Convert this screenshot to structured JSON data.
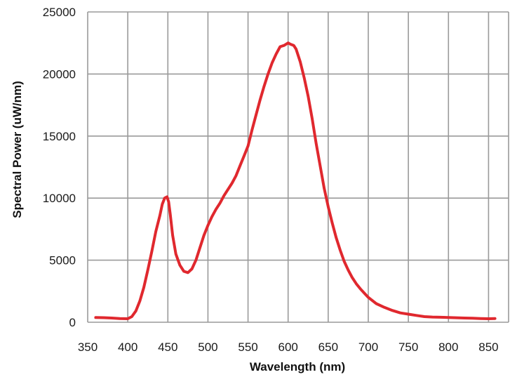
{
  "chart_data": {
    "type": "line",
    "title": "",
    "xlabel": "Wavelength (nm)",
    "ylabel": "Spectral Power (uW/nm)",
    "xlim": [
      350,
      875
    ],
    "ylim": [
      0,
      25000
    ],
    "x_ticks": [
      350,
      400,
      450,
      500,
      550,
      600,
      650,
      700,
      750,
      800,
      850
    ],
    "y_ticks": [
      0,
      5000,
      10000,
      15000,
      20000,
      25000
    ],
    "grid": true,
    "colors": {
      "series": "#e0282e",
      "grid": "#9a9a9a",
      "text": "#1a1a1a"
    },
    "series": [
      {
        "x": [
          360,
          370,
          380,
          390,
          400,
          405,
          410,
          415,
          420,
          425,
          430,
          435,
          440,
          443,
          446,
          449,
          451,
          453,
          456,
          460,
          465,
          470,
          475,
          480,
          485,
          490,
          495,
          500,
          505,
          510,
          515,
          520,
          525,
          530,
          535,
          540,
          545,
          550,
          555,
          560,
          565,
          570,
          575,
          580,
          585,
          590,
          595,
          600,
          603,
          607,
          610,
          615,
          620,
          625,
          630,
          635,
          640,
          645,
          650,
          655,
          660,
          665,
          670,
          675,
          680,
          685,
          690,
          695,
          700,
          710,
          720,
          730,
          740,
          750,
          760,
          770,
          780,
          790,
          800,
          810,
          820,
          830,
          840,
          850,
          858
        ],
        "y": [
          380,
          370,
          340,
          300,
          280,
          450,
          900,
          1700,
          2800,
          4200,
          5700,
          7300,
          8600,
          9500,
          10000,
          10100,
          9700,
          8700,
          7000,
          5500,
          4600,
          4100,
          4000,
          4300,
          5000,
          6000,
          7000,
          7800,
          8500,
          9100,
          9600,
          10200,
          10700,
          11200,
          11800,
          12600,
          13400,
          14200,
          15500,
          16700,
          17900,
          19000,
          20000,
          20900,
          21600,
          22200,
          22300,
          22500,
          22400,
          22300,
          22000,
          21000,
          19700,
          18200,
          16400,
          14400,
          12600,
          10800,
          9300,
          8000,
          6800,
          5800,
          4900,
          4200,
          3600,
          3100,
          2700,
          2350,
          2000,
          1500,
          1200,
          950,
          750,
          650,
          550,
          450,
          420,
          400,
          380,
          360,
          340,
          320,
          300,
          280,
          300
        ]
      }
    ]
  }
}
